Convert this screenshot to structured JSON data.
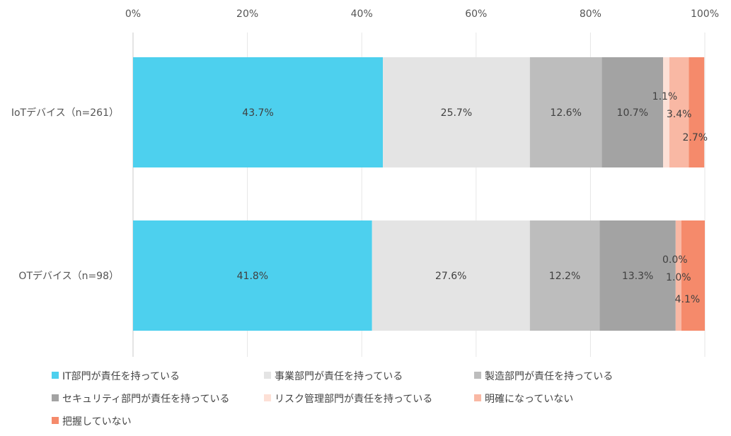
{
  "chart_data": {
    "type": "bar",
    "orientation": "horizontal",
    "stacked": "percent",
    "categories": [
      "IoTデバイス（n=261）",
      "OTデバイス（n=98）"
    ],
    "xlim": [
      0,
      100
    ],
    "xticks": [
      "0%",
      "20%",
      "40%",
      "60%",
      "80%",
      "100%"
    ],
    "grid": true,
    "legend_position": "bottom",
    "series": [
      {
        "name": "IT部門が責任を持っている",
        "color": "#4dd0ee",
        "values": [
          43.7,
          41.8
        ],
        "labels": [
          "43.7%",
          "41.8%"
        ]
      },
      {
        "name": "事業部門が責任を持っている",
        "color": "#e4e4e4",
        "values": [
          25.7,
          27.6
        ],
        "labels": [
          "25.7%",
          "27.6%"
        ]
      },
      {
        "name": "製造部門が責任を持っている",
        "color": "#bdbdbd",
        "values": [
          12.6,
          12.2
        ],
        "labels": [
          "12.6%",
          "12.2%"
        ]
      },
      {
        "name": "セキュリティ部門が責任を持っている",
        "color": "#a3a3a3",
        "values": [
          10.7,
          13.3
        ],
        "labels": [
          "10.7%",
          "13.3%"
        ]
      },
      {
        "name": "リスク管理部門が責任を持っている",
        "color": "#fde0d6",
        "values": [
          1.1,
          0.0
        ],
        "labels": [
          "1.1%",
          "0.0%"
        ]
      },
      {
        "name": "明確になっていない",
        "color": "#f9b8a4",
        "values": [
          3.4,
          1.0
        ],
        "labels": [
          "3.4%",
          "1.0%"
        ]
      },
      {
        "name": "把握していない",
        "color": "#f58a6b",
        "values": [
          2.7,
          4.1
        ],
        "labels": [
          "2.7%",
          "4.1%"
        ]
      }
    ]
  }
}
